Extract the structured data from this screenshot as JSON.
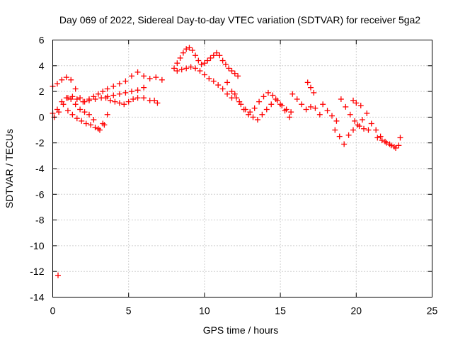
{
  "chart_data": {
    "type": "scatter",
    "title": "Day 069 of 2022, Sidereal Day-to-day VTEC variation (SDTVAR) for receiver 5ga2",
    "xlabel": "GPS time / hours",
    "ylabel": "SDTVAR / TECUs",
    "xlim": [
      0,
      25
    ],
    "ylim": [
      -14,
      6
    ],
    "xticks": [
      "0",
      "5",
      "10",
      "15",
      "20",
      "25"
    ],
    "yticks": [
      "6",
      "4",
      "2",
      "0",
      "-2",
      "-4",
      "-6",
      "-8",
      "-10",
      "-12",
      "-14"
    ],
    "grid": true,
    "marker": "plus",
    "color": "#ff0000",
    "series": [
      {
        "name": "SDTVAR",
        "x": [
          0.0,
          0.3,
          0.6,
          0.9,
          1.2,
          1.5,
          1.8,
          2.1,
          2.4,
          2.7,
          3.0,
          3.3,
          3.6,
          4.0,
          4.4,
          4.8,
          5.2,
          5.6,
          6.0,
          6.4,
          6.8,
          7.2,
          0.0,
          0.3,
          0.6,
          0.9,
          1.2,
          1.5,
          1.8,
          2.1,
          2.4,
          2.7,
          3.0,
          3.3,
          3.6,
          0.1,
          0.4,
          0.7,
          1.0,
          1.3,
          1.6,
          2.0,
          2.4,
          2.8,
          3.2,
          3.6,
          4.0,
          4.4,
          4.8,
          5.2,
          5.6,
          6.0,
          1.0,
          1.3,
          1.6,
          1.9,
          2.2,
          2.5,
          2.8,
          3.1,
          3.4,
          3.5,
          3.8,
          4.1,
          4.4,
          4.7,
          5.0,
          5.3,
          5.6,
          6.0,
          6.4,
          6.7,
          6.9,
          0.35,
          8.0,
          8.2,
          8.4,
          8.6,
          8.8,
          9.0,
          9.2,
          9.4,
          9.6,
          9.8,
          10.0,
          10.2,
          10.4,
          10.6,
          10.8,
          11.0,
          11.2,
          11.4,
          11.6,
          11.8,
          12.0,
          12.2,
          8.2,
          8.5,
          8.8,
          9.1,
          9.4,
          9.7,
          10.0,
          10.3,
          10.6,
          10.9,
          11.2,
          11.5,
          11.8,
          11.5,
          11.8,
          12.1,
          12.4,
          12.7,
          13.0,
          13.3,
          13.6,
          13.9,
          14.2,
          14.5,
          14.8,
          15.1,
          15.4,
          15.7,
          12.0,
          12.3,
          12.6,
          12.9,
          13.2,
          13.5,
          13.8,
          14.1,
          14.4,
          14.7,
          15.0,
          15.3,
          15.6,
          15.8,
          16.1,
          16.4,
          16.7,
          17.0,
          17.3,
          17.6,
          16.8,
          17.0,
          17.2,
          17.8,
          18.1,
          18.4,
          18.7,
          18.6,
          18.9,
          19.2,
          19.5,
          19.8,
          20.1,
          20.4,
          20.7,
          19.0,
          19.3,
          19.6,
          19.9,
          20.2,
          20.5,
          20.8,
          19.8,
          20.0,
          20.3,
          21.0,
          21.3,
          21.6,
          21.9,
          22.2,
          22.5,
          22.8,
          21.4,
          21.7,
          22.0,
          22.3,
          22.6,
          22.9
        ],
        "y": [
          2.4,
          2.6,
          2.9,
          3.1,
          2.9,
          2.2,
          1.5,
          1.2,
          1.4,
          1.6,
          1.8,
          2.0,
          2.2,
          2.4,
          2.6,
          2.8,
          3.2,
          3.5,
          3.2,
          3.0,
          3.1,
          2.9,
          0.3,
          0.6,
          1.2,
          1.5,
          1.4,
          1.0,
          0.6,
          0.4,
          0.2,
          -0.2,
          -0.9,
          -0.5,
          0.2,
          0.0,
          0.4,
          1.0,
          1.5,
          1.6,
          1.4,
          1.2,
          1.3,
          1.4,
          1.5,
          1.6,
          1.7,
          1.8,
          1.9,
          2.0,
          2.1,
          2.3,
          0.5,
          0.2,
          -0.1,
          -0.3,
          -0.5,
          -0.6,
          -0.8,
          -1.0,
          -0.6,
          1.5,
          1.3,
          1.2,
          1.1,
          1.0,
          1.2,
          1.4,
          1.5,
          1.5,
          1.3,
          1.3,
          1.1,
          -12.3,
          3.8,
          4.2,
          4.6,
          5.0,
          5.3,
          5.4,
          5.2,
          4.8,
          4.4,
          4.1,
          4.2,
          4.4,
          4.6,
          4.8,
          5.0,
          4.8,
          4.4,
          4.1,
          3.8,
          3.6,
          3.4,
          3.2,
          3.6,
          3.7,
          3.8,
          3.9,
          3.8,
          3.6,
          3.3,
          3.0,
          2.8,
          2.5,
          2.2,
          1.8,
          1.5,
          2.7,
          2.0,
          1.5,
          1.0,
          0.6,
          0.4,
          0.7,
          1.2,
          1.6,
          1.9,
          1.7,
          1.3,
          0.9,
          0.6,
          0.4,
          1.8,
          1.2,
          0.6,
          0.2,
          0.0,
          -0.2,
          0.2,
          0.6,
          1.0,
          1.4,
          1.0,
          0.5,
          0.0,
          1.8,
          1.4,
          1.0,
          0.6,
          0.8,
          0.7,
          0.2,
          2.7,
          2.3,
          1.9,
          1.0,
          0.5,
          0.1,
          -0.3,
          -1.0,
          -1.5,
          -2.1,
          -1.4,
          -1.0,
          -0.6,
          -0.2,
          0.3,
          1.4,
          0.8,
          0.2,
          -0.3,
          -0.7,
          -0.9,
          -1.0,
          1.3,
          1.1,
          0.9,
          -0.5,
          -1.0,
          -1.5,
          -1.9,
          -2.1,
          -2.3,
          -2.2,
          -1.6,
          -1.8,
          -2.0,
          -2.2,
          -2.4,
          -1.6
        ]
      }
    ]
  }
}
